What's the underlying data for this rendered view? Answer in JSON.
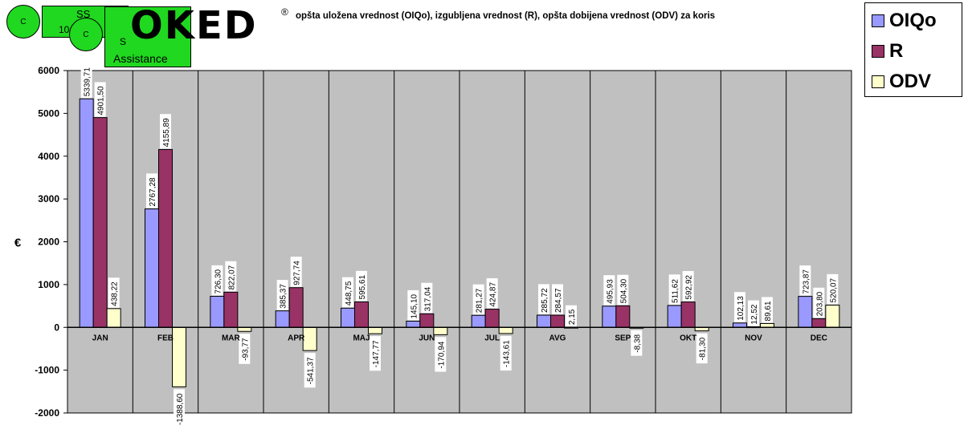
{
  "logo": {
    "text": "OKED",
    "registered": "®",
    "badge_top": "SS",
    "badge_mid": "10",
    "badge_s": "S",
    "assistance": "Assistance",
    "circle1": "C",
    "circle2": "C"
  },
  "colors": {
    "plot_bg": "#c0c0c0",
    "OIQo": "#9999ff",
    "R": "#993366",
    "ODV": "#ffffcc",
    "badge_green": "#20d820"
  },
  "chart_data": {
    "type": "bar",
    "title": "opšta uložena vrednost (OIQo), izgubljena vrednost (R), opšta dobijena vrednost (ODV) za koris",
    "ylabel": "€",
    "xlabel": "",
    "ylim": [
      -2000,
      6000
    ],
    "yticks": [
      -2000,
      -1000,
      0,
      1000,
      2000,
      3000,
      4000,
      5000,
      6000
    ],
    "legend_position": "top-right",
    "grid": false,
    "categories": [
      "JAN",
      "FEB",
      "MAR",
      "APR",
      "MAJ",
      "JUN",
      "JUL",
      "AVG",
      "SEP",
      "OKT",
      "NOV",
      "DEC"
    ],
    "series": [
      {
        "name": "OIQo",
        "values": [
          5339.71,
          2767.28,
          726.3,
          385.37,
          448.75,
          145.1,
          281.27,
          285.72,
          495.93,
          511.62,
          102.13,
          723.87
        ],
        "labels": [
          "5339,71",
          "2767,28",
          "726,30",
          "385,37",
          "448,75",
          "145,10",
          "281,27",
          "285,72",
          "495,93",
          "511,62",
          "102,13",
          "723,87"
        ]
      },
      {
        "name": "R",
        "values": [
          4901.5,
          4155.89,
          822.07,
          927.74,
          595.61,
          317.04,
          424.87,
          284.57,
          504.3,
          592.92,
          12.52,
          203.8
        ],
        "labels": [
          "4901,50",
          "4155,89",
          "822,07",
          "927,74",
          "595,61",
          "317,04",
          "424,87",
          "284,57",
          "504,30",
          "592,92",
          "12,52",
          "203,80"
        ]
      },
      {
        "name": "ODV",
        "values": [
          438.22,
          -1388.6,
          -93.77,
          -541.37,
          -147.77,
          -170.94,
          -143.61,
          2.15,
          -8.38,
          -81.3,
          89.61,
          520.07
        ],
        "labels": [
          "438,22",
          "-1388,60",
          "-93,77",
          "-541,37",
          "-147,77",
          "-170,94",
          "-143,61",
          "2,15",
          "-8,38",
          "-81,30",
          "89,61",
          "520,07"
        ]
      }
    ]
  }
}
